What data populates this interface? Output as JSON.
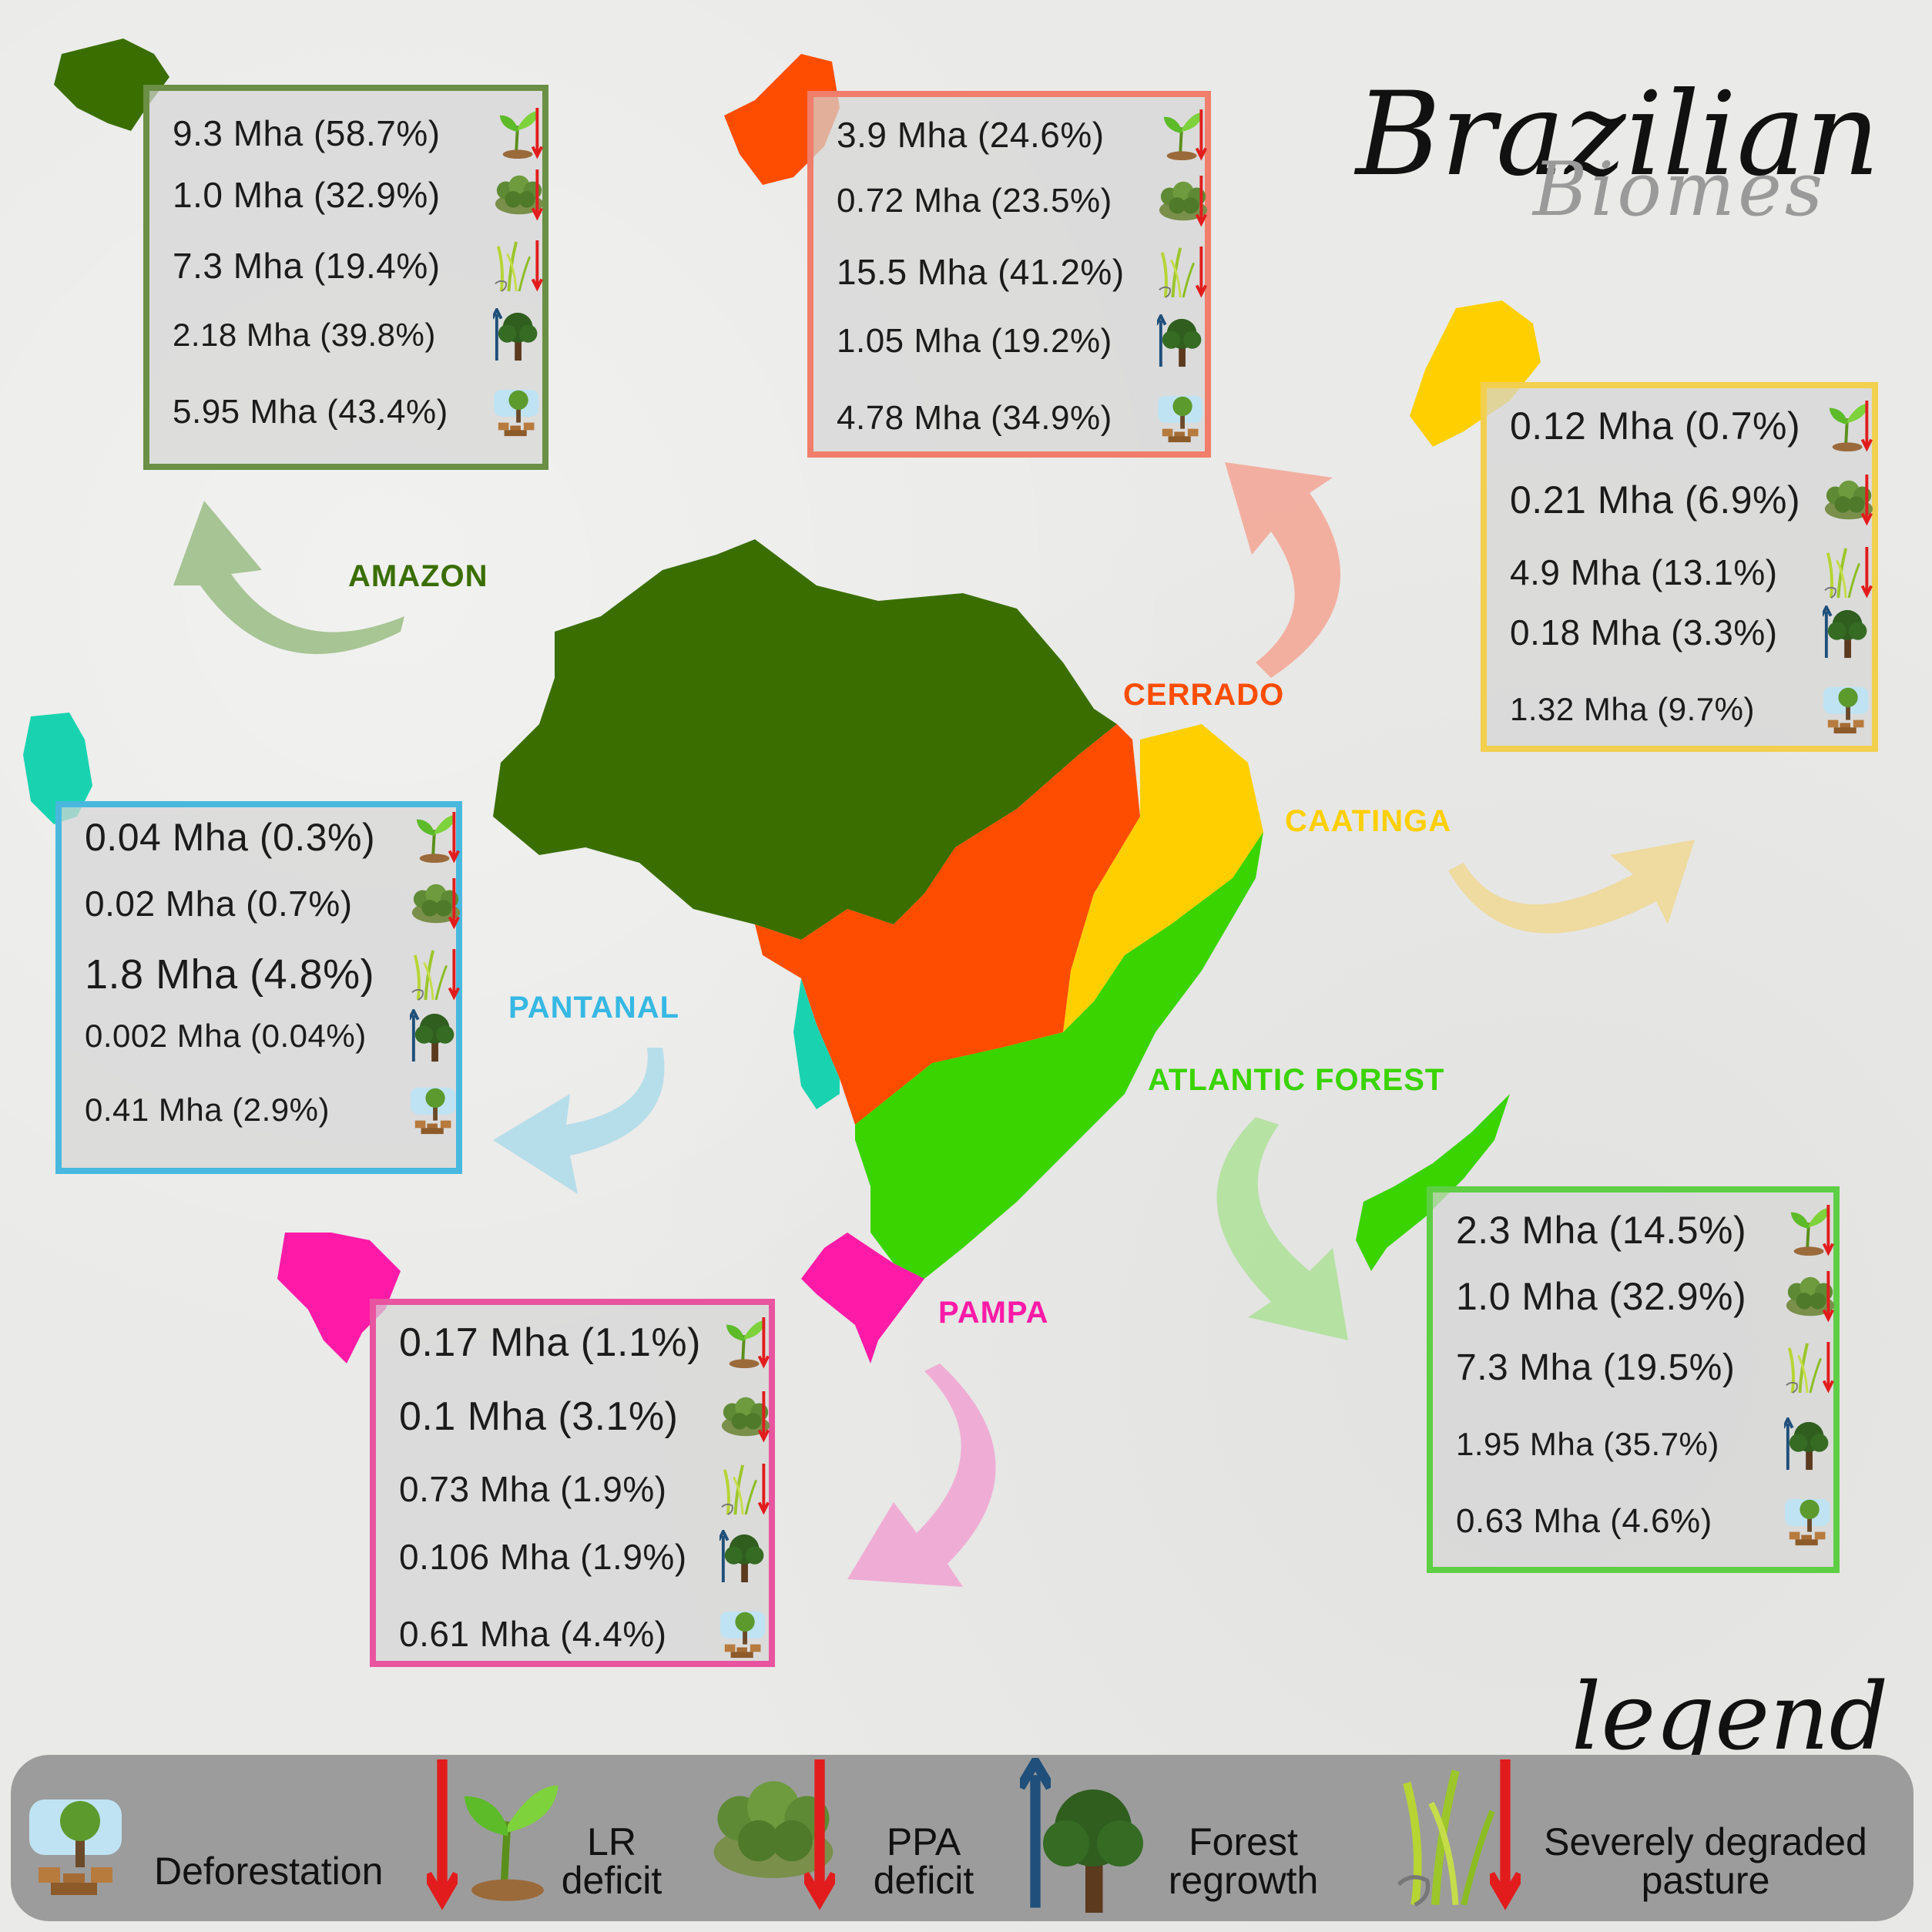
{
  "title": "Brazilian",
  "subtitle": "Biomes",
  "legend_title": "legend",
  "legend": {
    "deforestation": "Deforestation",
    "lr_line1": "LR",
    "lr_line2": "deficit",
    "ppa_line1": "PPA",
    "ppa_line2": "deficit",
    "forest_line1": "Forest",
    "forest_line2": "regrowth",
    "pasture_line1": "Severely degraded",
    "pasture_line2": "pasture"
  },
  "colors": {
    "amazon": "#3a6f00",
    "cerrado": "#ff4d00",
    "caatinga": "#ffcf00",
    "pantanal": "#19d3b0",
    "atlantic": "#3ad400",
    "pampa": "#ff1aa8"
  },
  "biomes": {
    "amazon": {
      "name": "AMAZON",
      "lr": "9.3 Mha (58.7%)",
      "ppa": "1.0 Mha (32.9%)",
      "pasture": "7.3 Mha (19.4%)",
      "regrowth": "2.18 Mha (39.8%)",
      "deforestation": "5.95 Mha (43.4%)"
    },
    "cerrado": {
      "name": "CERRADO",
      "lr": "3.9 Mha (24.6%)",
      "ppa": "0.72 Mha (23.5%)",
      "pasture": "15.5 Mha (41.2%)",
      "regrowth": "1.05 Mha (19.2%)",
      "deforestation": "4.78 Mha (34.9%)"
    },
    "caatinga": {
      "name": "CAATINGA",
      "lr": "0.12 Mha (0.7%)",
      "ppa": "0.21 Mha (6.9%)",
      "pasture": "4.9 Mha (13.1%)",
      "regrowth": "0.18 Mha (3.3%)",
      "deforestation": "1.32 Mha (9.7%)"
    },
    "pantanal": {
      "name": "PANTANAL",
      "lr": "0.04 Mha (0.3%)",
      "ppa": "0.02 Mha (0.7%)",
      "pasture": "1.8 Mha (4.8%)",
      "regrowth": "0.002 Mha (0.04%)",
      "deforestation": "0.41 Mha (2.9%)"
    },
    "atlantic": {
      "name": "ATLANTIC FOREST",
      "lr": "2.3 Mha (14.5%)",
      "ppa": "1.0 Mha (32.9%)",
      "pasture": "7.3 Mha (19.5%)",
      "regrowth": "1.95 Mha (35.7%)",
      "deforestation": "0.63 Mha (4.6%)"
    },
    "pampa": {
      "name": "PAMPA",
      "lr": "0.17 Mha (1.1%)",
      "ppa": "0.1 Mha (3.1%)",
      "pasture": "0.73 Mha (1.9%)",
      "regrowth": "0.106 Mha (1.9%)",
      "deforestation": "0.61 Mha (4.4%)"
    }
  }
}
